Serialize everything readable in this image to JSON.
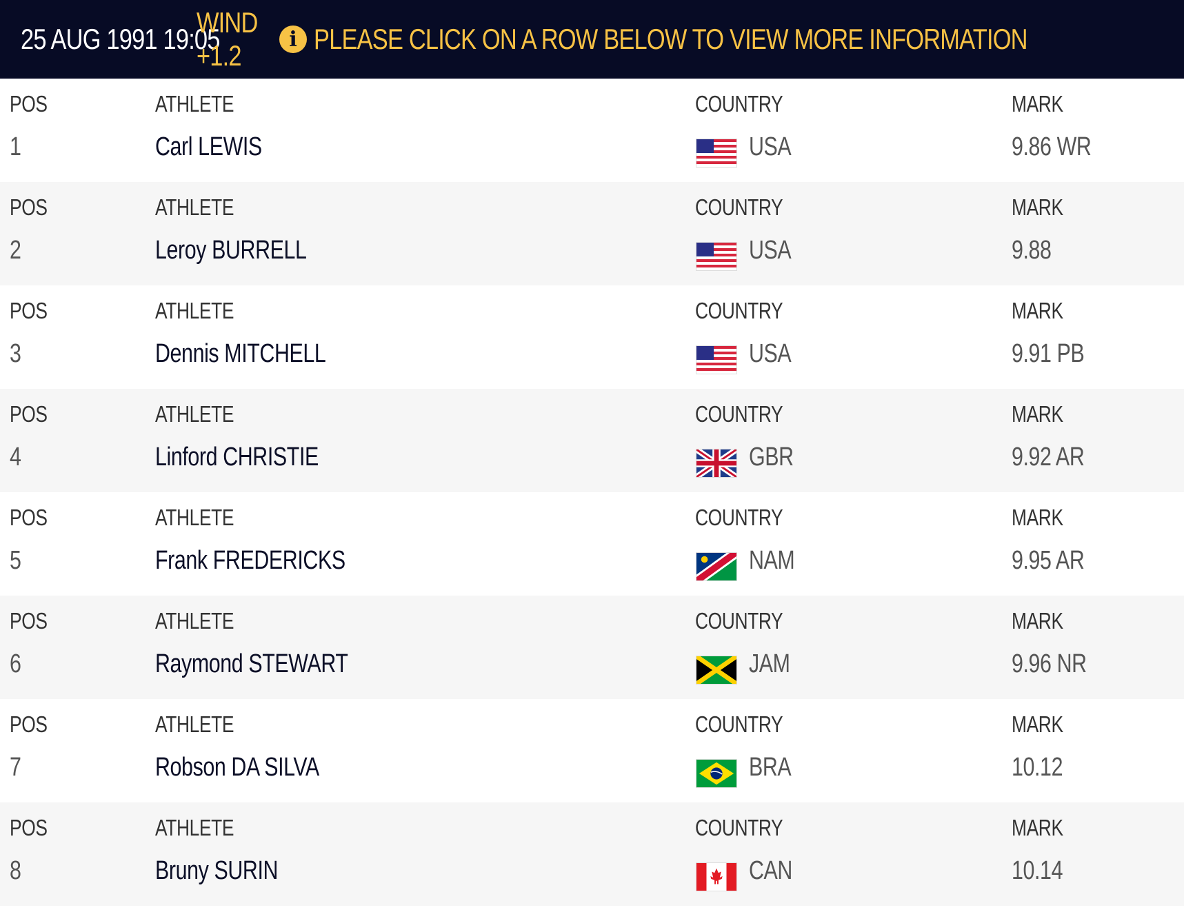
{
  "header": {
    "datetime": "25 AUG 1991 19:05",
    "wind": "WIND +1.2",
    "info_icon": "info-icon",
    "notice": "PLEASE CLICK ON A ROW BELOW TO VIEW MORE INFORMATION"
  },
  "labels": {
    "pos": "POS",
    "athlete": "ATHLETE",
    "country": "COUNTRY",
    "mark": "MARK"
  },
  "rows": [
    {
      "pos": "1",
      "athlete": "Carl LEWIS",
      "country": "USA",
      "flag": "usa-flag-icon",
      "mark": "9.86 WR"
    },
    {
      "pos": "2",
      "athlete": "Leroy BURRELL",
      "country": "USA",
      "flag": "usa-flag-icon",
      "mark": "9.88"
    },
    {
      "pos": "3",
      "athlete": "Dennis MITCHELL",
      "country": "USA",
      "flag": "usa-flag-icon",
      "mark": "9.91 PB"
    },
    {
      "pos": "4",
      "athlete": "Linford CHRISTIE",
      "country": "GBR",
      "flag": "gbr-flag-icon",
      "mark": "9.92 AR"
    },
    {
      "pos": "5",
      "athlete": "Frank FREDERICKS",
      "country": "NAM",
      "flag": "nam-flag-icon",
      "mark": "9.95 AR"
    },
    {
      "pos": "6",
      "athlete": "Raymond STEWART",
      "country": "JAM",
      "flag": "jam-flag-icon",
      "mark": "9.96 NR"
    },
    {
      "pos": "7",
      "athlete": "Robson DA SILVA",
      "country": "BRA",
      "flag": "bra-flag-icon",
      "mark": "10.12"
    },
    {
      "pos": "8",
      "athlete": "Bruny SURIN",
      "country": "CAN",
      "flag": "can-flag-icon",
      "mark": "10.14"
    }
  ]
}
